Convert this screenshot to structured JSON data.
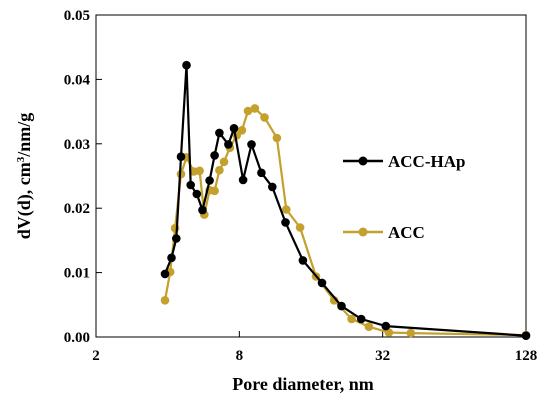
{
  "chart_data": {
    "type": "line",
    "xlabel": "Pore diameter, nm",
    "ylabel_main": "dV(d),  cm",
    "ylabel_sup": "3",
    "ylabel_tail": "/nm/g",
    "x_scale": "log2",
    "xlim": [
      2,
      128
    ],
    "ylim": [
      0,
      0.05
    ],
    "x_ticks": [
      2,
      8,
      32,
      128
    ],
    "x_tick_labels": [
      "2",
      "8",
      "32",
      "128"
    ],
    "y_ticks": [
      0,
      0.01,
      0.02,
      0.03,
      0.04,
      0.05
    ],
    "y_tick_labels": [
      "0.00",
      "0.01",
      "0.02",
      "0.03",
      "0.04",
      "0.05"
    ],
    "grid": false,
    "legend_position": "right",
    "series": [
      {
        "name": "ACC-HAp",
        "color": "#000000",
        "x": [
          3.9,
          4.15,
          4.35,
          4.55,
          4.8,
          5.0,
          5.3,
          5.6,
          6.0,
          6.3,
          6.6,
          7.2,
          7.6,
          8.3,
          9.0,
          9.9,
          11.0,
          12.5,
          14.8,
          17.8,
          21.5,
          26.0,
          33.0,
          128.0
        ],
        "y": [
          0.0098,
          0.0123,
          0.0153,
          0.028,
          0.0422,
          0.0236,
          0.0222,
          0.0197,
          0.0243,
          0.0282,
          0.0317,
          0.0299,
          0.0324,
          0.0244,
          0.0299,
          0.0255,
          0.0233,
          0.0178,
          0.0119,
          0.0084,
          0.0048,
          0.0028,
          0.0017,
          0.0002
        ]
      },
      {
        "name": "ACC",
        "color": "#C4A02C",
        "x": [
          3.9,
          4.1,
          4.3,
          4.55,
          4.8,
          5.15,
          5.45,
          5.7,
          6.0,
          6.3,
          6.6,
          6.9,
          7.3,
          7.8,
          8.2,
          8.7,
          9.3,
          10.2,
          11.5,
          12.6,
          14.4,
          16.8,
          20.0,
          23.7,
          28.0,
          34.0,
          42.0,
          128.0
        ],
        "y": [
          0.0057,
          0.0101,
          0.0169,
          0.0253,
          0.0279,
          0.0257,
          0.0258,
          0.019,
          0.0228,
          0.0227,
          0.0259,
          0.0272,
          0.0294,
          0.0313,
          0.0321,
          0.0351,
          0.0355,
          0.0341,
          0.0309,
          0.0198,
          0.017,
          0.0094,
          0.0057,
          0.0028,
          0.0016,
          0.0007,
          0.0006,
          0.0003
        ]
      }
    ]
  }
}
